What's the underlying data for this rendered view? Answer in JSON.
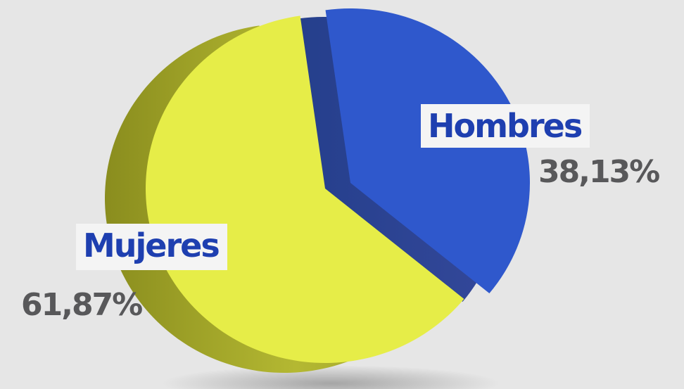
{
  "chart_data": {
    "type": "pie",
    "slices": [
      {
        "label": "Hombres",
        "value": 38.13,
        "value_label": "38,13%",
        "color": "#2f58cc"
      },
      {
        "label": "Mujeres",
        "value": 61.87,
        "value_label": "61,87%",
        "color": "#e6ed48"
      }
    ],
    "style": "3d-exploded",
    "background": "#e6e6e6"
  }
}
